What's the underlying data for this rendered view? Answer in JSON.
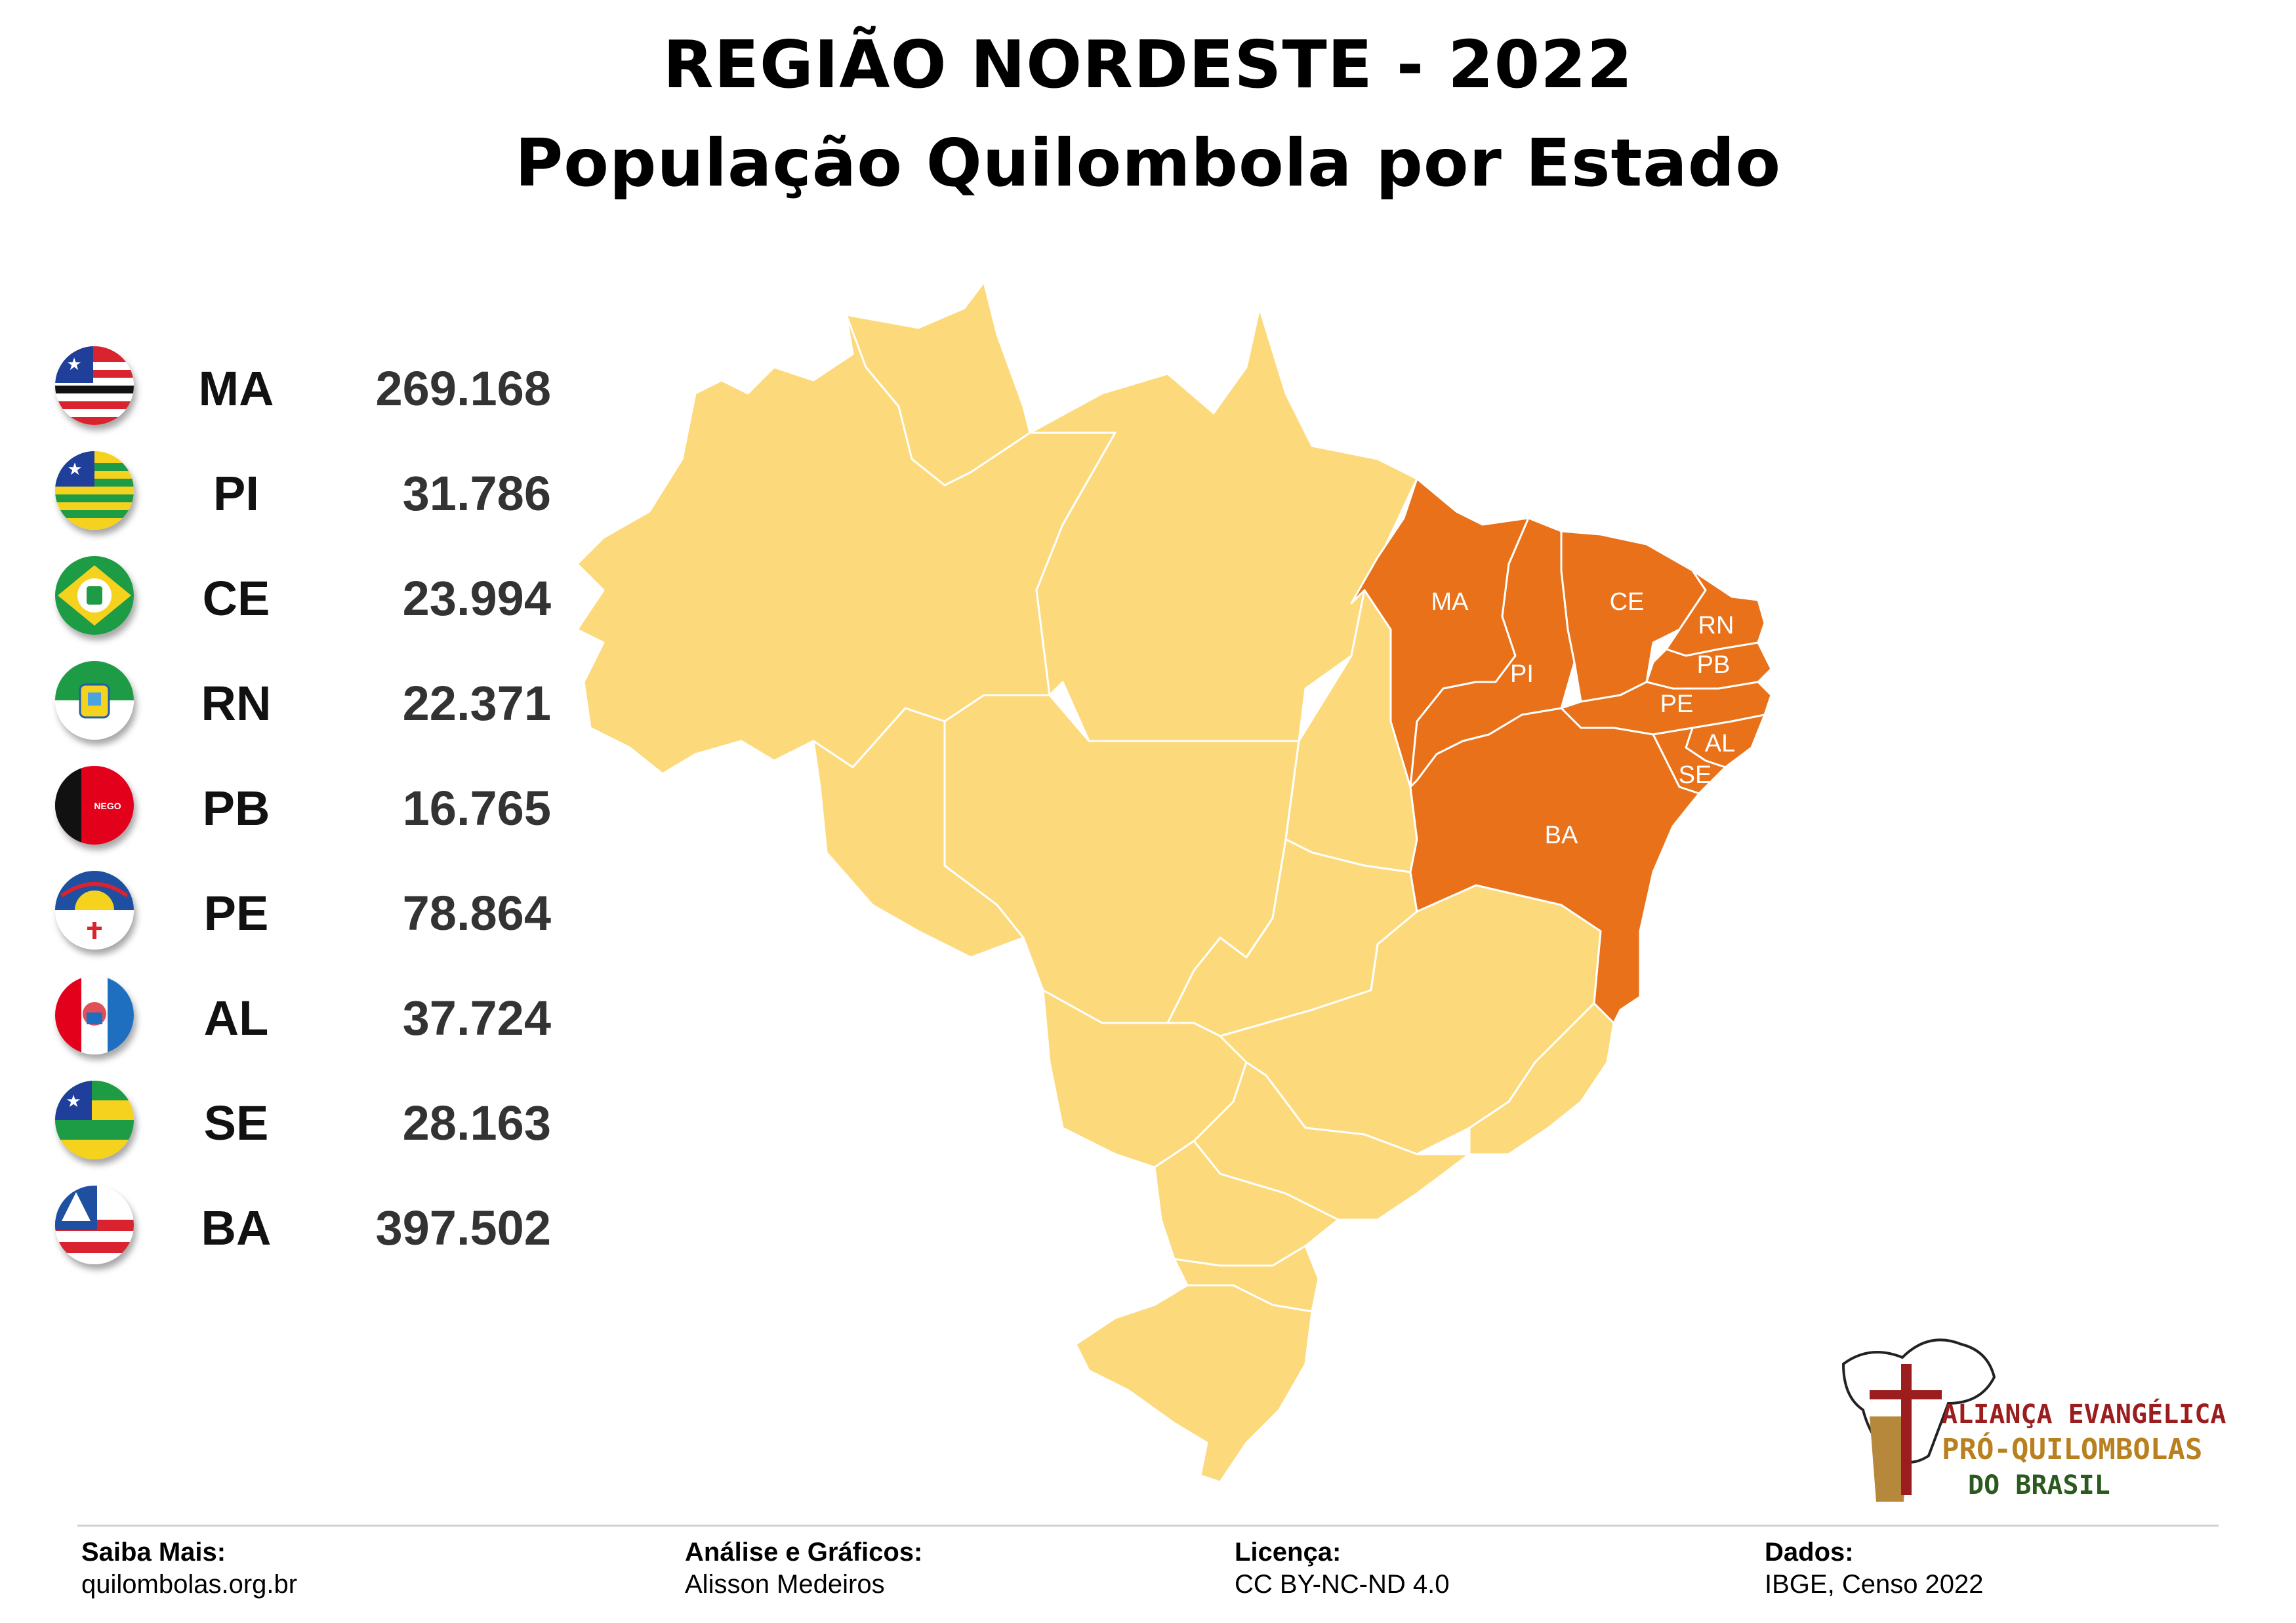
{
  "title": {
    "line1": "REGIÃO NORDESTE - 2022",
    "line2": "População Quilombola por Estado"
  },
  "legend": [
    {
      "abbr": "MA",
      "value": "269.168",
      "icon": "maranhao-flag-icon"
    },
    {
      "abbr": "PI",
      "value": "31.786",
      "icon": "piaui-flag-icon"
    },
    {
      "abbr": "CE",
      "value": "23.994",
      "icon": "ceara-flag-icon"
    },
    {
      "abbr": "RN",
      "value": "22.371",
      "icon": "rio-grande-do-norte-flag-icon"
    },
    {
      "abbr": "PB",
      "value": "16.765",
      "icon": "paraiba-flag-icon"
    },
    {
      "abbr": "PE",
      "value": "78.864",
      "icon": "pernambuco-flag-icon"
    },
    {
      "abbr": "AL",
      "value": "37.724",
      "icon": "alagoas-flag-icon"
    },
    {
      "abbr": "SE",
      "value": "28.163",
      "icon": "sergipe-flag-icon"
    },
    {
      "abbr": "BA",
      "value": "397.502",
      "icon": "bahia-flag-icon"
    }
  ],
  "flag_text": {
    "pb": "NEGO"
  },
  "map": {
    "labels": [
      "MA",
      "PI",
      "CE",
      "RN",
      "PB",
      "PE",
      "AL",
      "SE",
      "BA"
    ],
    "highlight_color": "#E8711A",
    "base_color": "#FCD97B"
  },
  "logo": {
    "line1": "ALIANÇA EVANGÉLICA",
    "line2": "PRÓ-QUILOMBOLAS",
    "line3": "DO BRASIL"
  },
  "footer": {
    "saiba_label": "Saiba Mais:",
    "saiba_value": "quilombolas.org.br",
    "analise_label": "Análise e Gráficos:",
    "analise_value": "Alisson Medeiros",
    "licenca_label": "Licença:",
    "licenca_value": "CC BY-NC-ND 4.0",
    "dados_label": "Dados:",
    "dados_value": "IBGE, Censo 2022"
  }
}
